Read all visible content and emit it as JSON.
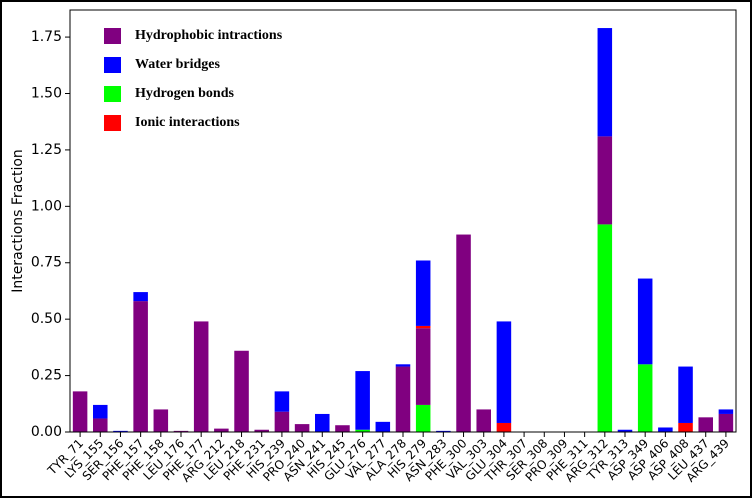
{
  "chart_data": {
    "type": "stacked-bar",
    "y_label": "Interactions Fraction",
    "categories": [
      "TYR_71",
      "LYS_155",
      "SER_156",
      "PHE_157",
      "PHE_158",
      "LEU_176",
      "PHE_177",
      "ARG_212",
      "LEU_218",
      "PHE_231",
      "HIS_239",
      "PRO_240",
      "ASN_241",
      "HIS_245",
      "GLU_276",
      "VAL_277",
      "ALA_278",
      "HIS_279",
      "ASN_283",
      "PHE_300",
      "VAL_303",
      "GLU_304",
      "THR_307",
      "SER_308",
      "PRO_309",
      "PHE_311",
      "ARG_312",
      "TYR_313",
      "ASP_349",
      "ASP_406",
      "ASP_408",
      "LEU_437",
      "ARG_439"
    ],
    "series": [
      {
        "name": "Hydrophobic intractions",
        "color": "#800080",
        "values": [
          0.18,
          0.06,
          0,
          0.58,
          0.1,
          0.005,
          0.49,
          0.015,
          0.36,
          0.01,
          0.09,
          0.035,
          0,
          0.03,
          0,
          0,
          0.29,
          0.34,
          0,
          0.875,
          0.1,
          0,
          0,
          0,
          0,
          0,
          0.39,
          0,
          0,
          0,
          0,
          0.065,
          0.08
        ]
      },
      {
        "name": "Water bridges",
        "color": "#0000ff",
        "values": [
          0,
          0.06,
          0.005,
          0.04,
          0,
          0,
          0,
          0,
          0,
          0,
          0.09,
          0,
          0.08,
          0,
          0.26,
          0.045,
          0.01,
          0.29,
          0.005,
          0,
          0,
          0.45,
          0,
          0,
          0,
          0,
          0.48,
          0.01,
          0.38,
          0.02,
          0.25,
          0,
          0.02
        ]
      },
      {
        "name": "Hydrogen bonds",
        "color": "#00ff00",
        "values": [
          0,
          0,
          0,
          0,
          0,
          0,
          0,
          0,
          0,
          0,
          0,
          0,
          0,
          0,
          0.01,
          0,
          0,
          0.12,
          0,
          0,
          0,
          0,
          0,
          0,
          0,
          0,
          0.92,
          0,
          0.3,
          0,
          0,
          0,
          0
        ]
      },
      {
        "name": "Ionic interactions",
        "color": "#ff0000",
        "values": [
          0,
          0,
          0,
          0,
          0,
          0,
          0,
          0,
          0,
          0,
          0,
          0,
          0,
          0,
          0,
          0,
          0,
          0.01,
          0,
          0,
          0,
          0.04,
          0,
          0,
          0,
          0,
          0,
          0,
          0,
          0,
          0.04,
          0,
          0
        ]
      }
    ],
    "ylim": [
      0,
      1.87
    ],
    "yticks": [
      {
        "value": 0,
        "label": "0.00"
      },
      {
        "value": 0.25,
        "label": "0.25"
      },
      {
        "value": 0.5,
        "label": "0.50"
      },
      {
        "value": 0.75,
        "label": "0.75"
      },
      {
        "value": 1,
        "label": "1.00"
      },
      {
        "value": 1.25,
        "label": "1.25"
      },
      {
        "value": 1.5,
        "label": "1.50"
      },
      {
        "value": 1.75,
        "label": "1.75"
      }
    ],
    "legend": "upper-left"
  }
}
